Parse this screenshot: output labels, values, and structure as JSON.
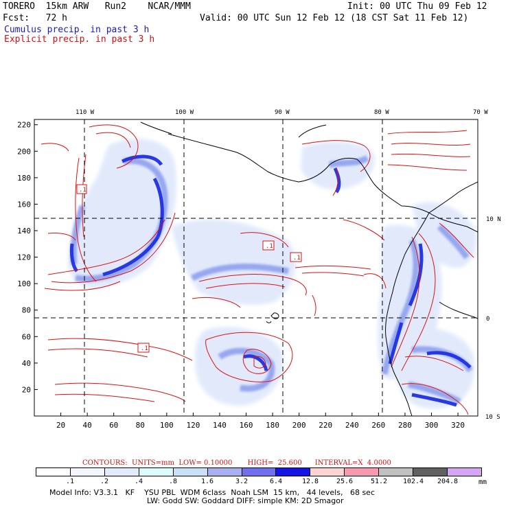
{
  "header": {
    "model_line": "TORERO  15km ARW   Run2    NCAR/MMM",
    "init_line": "Init: 00 UTC Thu 09 Feb 12",
    "fcst_line": "Fcst:   72 h",
    "valid_line": "Valid: 00 UTC Sun 12 Feb 12 (18 CST Sat 11 Feb 12)",
    "cumulus_label": "Cumulus precip. in past 3 h",
    "explicit_label": "Explicit precip. in past 3 h"
  },
  "map": {
    "lon_labels": [
      "110 W",
      "100 W",
      "90 W",
      "80 W",
      "70 W"
    ],
    "lat_labels": [
      "10 N",
      "0",
      "10 S"
    ],
    "x_ticks": [
      "20",
      "40",
      "60",
      "80",
      "100",
      "120",
      "140",
      "160",
      "180",
      "200",
      "220",
      "240",
      "260",
      "280",
      "300",
      "320"
    ],
    "y_ticks": [
      "20",
      "40",
      "60",
      "80",
      "100",
      "120",
      "140",
      "160",
      "180",
      "200",
      "220"
    ],
    "contour_labels": [
      ".1",
      ".1",
      ".1",
      ".1"
    ],
    "colors": {
      "explicit_contour": "#dd1010",
      "coast": "#000000",
      "grid": "#000000",
      "precip_light": "#dce6fb",
      "precip_mid": "#8fa0ee",
      "precip_heavy": "#2030e0"
    }
  },
  "contours_info": "CONTOURS:  UNITS=mm  LOW= 0.10000       HIGH=  25.600      INTERVAL=X  4.0000",
  "colorbar": {
    "labels": [
      ".1",
      ".2",
      ".4",
      ".8",
      "1.6",
      "3.2",
      "6.4",
      "12.8",
      "25.6",
      "51.2",
      "102.4",
      "204.8"
    ],
    "colors": [
      "#ffffff",
      "#f2f6ff",
      "#e2ecfc",
      "#ddfdfd",
      "#c8e0f8",
      "#a8b0f2",
      "#6f6ff0",
      "#1414e6",
      "#fcd4d4",
      "#f79ab0",
      "#c0c0c0",
      "#606060",
      "#d6a6f6"
    ],
    "unit": "mm"
  },
  "model_info": {
    "line1": "Model Info: V3.3.1   KF    YSU PBL  WDM 6class  Noah LSM  15 km,   44 levels,   68 sec",
    "line2": "LW: Godd SW: Goddard DIFF: simple KM: 2D Smagor"
  }
}
